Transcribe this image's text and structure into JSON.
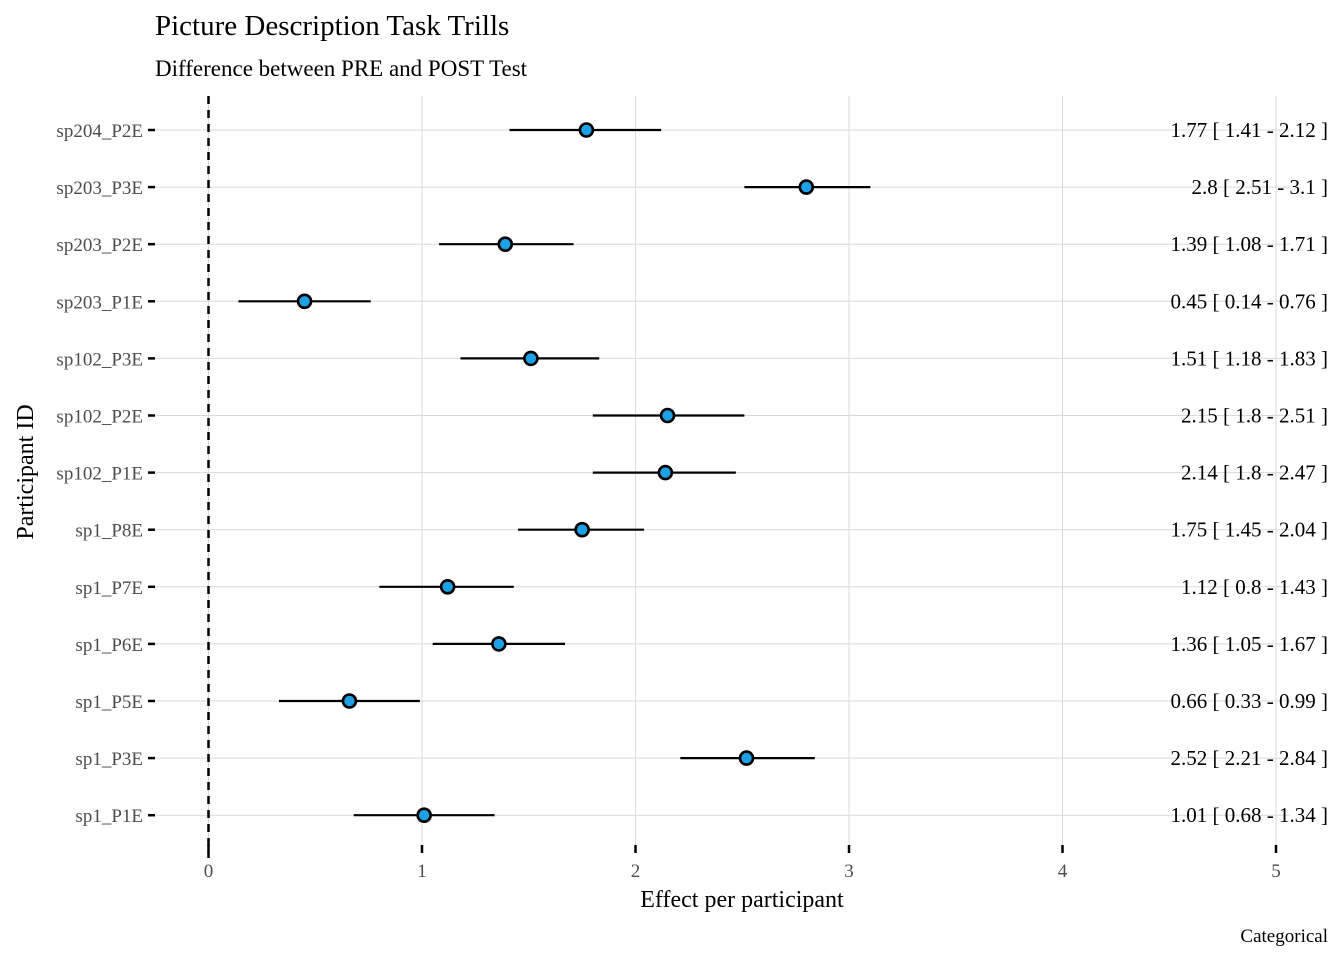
{
  "chart_data": {
    "type": "scatter",
    "title": "Picture Description Task Trills",
    "subtitle": "Difference between PRE and POST Test",
    "xlabel": "Effect per participant",
    "ylabel": "Participant ID",
    "caption": "Categorical",
    "xlim": [
      0,
      5
    ],
    "xticks": [
      0,
      1,
      2,
      3,
      4,
      5
    ],
    "reference_line": 0,
    "grid": true,
    "colors": {
      "point_fill": "#1da1e6",
      "point_stroke": "#000000",
      "grid": "#d9d9d9"
    },
    "rows": [
      {
        "id": "sp204_P2E",
        "estimate": 1.77,
        "lower": 1.41,
        "upper": 2.12,
        "label": "1.77 [ 1.41 - 2.12 ]"
      },
      {
        "id": "sp203_P3E",
        "estimate": 2.8,
        "lower": 2.51,
        "upper": 3.1,
        "label": "2.8 [ 2.51 - 3.1 ]"
      },
      {
        "id": "sp203_P2E",
        "estimate": 1.39,
        "lower": 1.08,
        "upper": 1.71,
        "label": "1.39 [ 1.08 - 1.71 ]"
      },
      {
        "id": "sp203_P1E",
        "estimate": 0.45,
        "lower": 0.14,
        "upper": 0.76,
        "label": "0.45 [ 0.14 - 0.76 ]"
      },
      {
        "id": "sp102_P3E",
        "estimate": 1.51,
        "lower": 1.18,
        "upper": 1.83,
        "label": "1.51 [ 1.18 - 1.83 ]"
      },
      {
        "id": "sp102_P2E",
        "estimate": 2.15,
        "lower": 1.8,
        "upper": 2.51,
        "label": "2.15 [ 1.8 - 2.51 ]"
      },
      {
        "id": "sp102_P1E",
        "estimate": 2.14,
        "lower": 1.8,
        "upper": 2.47,
        "label": "2.14 [ 1.8 - 2.47 ]"
      },
      {
        "id": "sp1_P8E",
        "estimate": 1.75,
        "lower": 1.45,
        "upper": 2.04,
        "label": "1.75 [ 1.45 - 2.04 ]"
      },
      {
        "id": "sp1_P7E",
        "estimate": 1.12,
        "lower": 0.8,
        "upper": 1.43,
        "label": "1.12 [ 0.8 - 1.43 ]"
      },
      {
        "id": "sp1_P6E",
        "estimate": 1.36,
        "lower": 1.05,
        "upper": 1.67,
        "label": "1.36 [ 1.05 - 1.67 ]"
      },
      {
        "id": "sp1_P5E",
        "estimate": 0.66,
        "lower": 0.33,
        "upper": 0.99,
        "label": "0.66 [ 0.33 - 0.99 ]"
      },
      {
        "id": "sp1_P3E",
        "estimate": 2.52,
        "lower": 2.21,
        "upper": 2.84,
        "label": "2.52 [ 2.21 - 2.84 ]"
      },
      {
        "id": "sp1_P1E",
        "estimate": 1.01,
        "lower": 0.68,
        "upper": 1.34,
        "label": "1.01 [ 0.68 - 1.34 ]"
      }
    ]
  }
}
